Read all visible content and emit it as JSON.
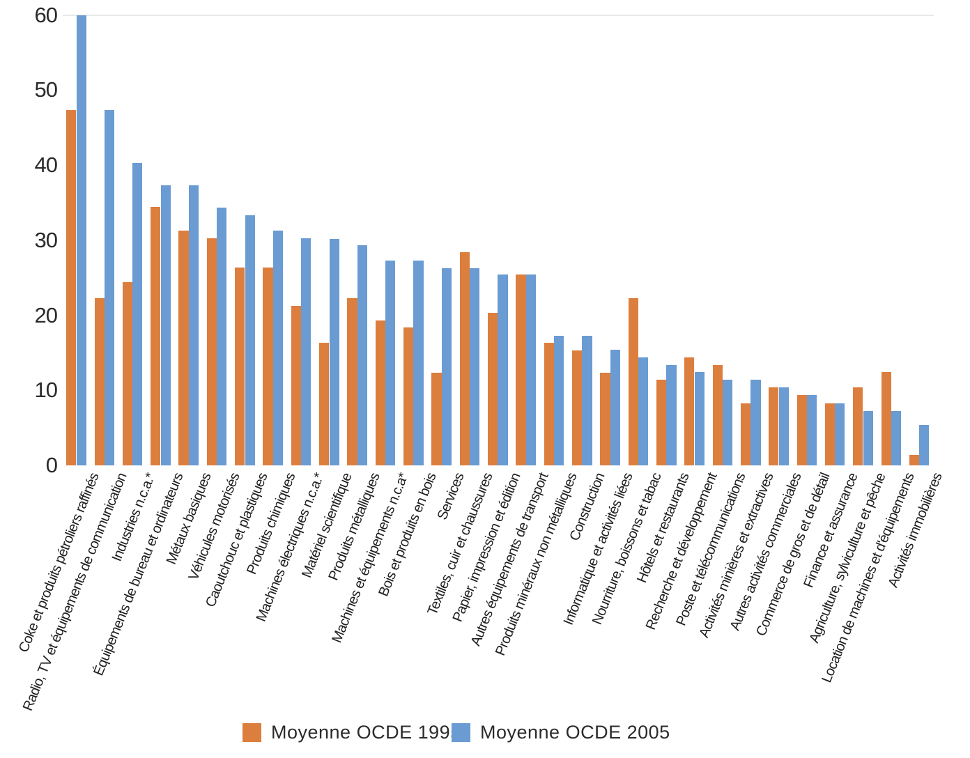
{
  "chart_data": {
    "type": "bar",
    "title": "",
    "xlabel": "",
    "ylabel": "",
    "categories": [
      "Coke et produits pétroliers raffinés",
      "Radio, TV et équipements de communication",
      "Industries n.c.a.*",
      "Équipements de bureau et ordinateurs",
      "Métaux basiques",
      "Véhicules motorisés",
      "Caoutchouc et plastiques",
      "Produits chimiques",
      "Machines électriques n.c.a.*",
      "Matériel scientifique",
      "Produits métalliques",
      "Machines et équipements n.c.a*",
      "Bois et produits en bois",
      "Services",
      "Textiles, cuir et chaussures",
      "Papier, impression et édition",
      "Autres équipements de transport",
      "Produits minéraux non métalliques",
      "Construction",
      "Informatique et activités liées",
      "Nourriture, boissons et tabac",
      "Hôtels et restaurants",
      "Recherche et développement",
      "Poste et télécommunications",
      "Activités minières et extractives",
      "Autres activités commerciales",
      "Commerce de gros et de détail",
      "Finance et assurance",
      "Agriculture, sylviculture et pêche",
      "Location de machines et d'équipements",
      "Activités immobilières"
    ],
    "series": [
      {
        "name": "Moyenne OCDE 1995",
        "color": "#DC7E3E",
        "values": [
          47.3,
          22.3,
          24.4,
          34.4,
          31.3,
          30.3,
          26.4,
          26.4,
          21.3,
          16.3,
          22.3,
          19.3,
          18.4,
          12.3,
          28.4,
          20.3,
          25.4,
          16.3,
          15.3,
          12.3,
          22.3,
          11.4,
          14.4,
          13.4,
          8.3,
          10.4,
          9.4,
          8.3,
          10.4,
          12.4,
          1.4
        ]
      },
      {
        "name": "Moyenne OCDE 2005",
        "color": "#6A9BD2",
        "values": [
          60.0,
          47.3,
          40.3,
          37.3,
          37.3,
          34.3,
          33.3,
          31.3,
          30.3,
          30.2,
          29.3,
          27.3,
          27.3,
          26.3,
          26.3,
          25.4,
          25.4,
          17.3,
          17.3,
          15.4,
          14.4,
          13.4,
          12.4,
          11.4,
          11.4,
          10.4,
          9.4,
          8.3,
          7.2,
          7.2,
          5.4
        ]
      }
    ],
    "ylim": [
      0,
      62
    ],
    "yticks": [
      0,
      10,
      20,
      30,
      40,
      50,
      60
    ],
    "grid": "single faint horizontal line at value 60",
    "legend_position": "bottom",
    "xtick_rotation_deg": 68
  },
  "legend": {
    "items": [
      {
        "label": "Moyenne OCDE 1995",
        "color": "#DC7E3E"
      },
      {
        "label": "Moyenne OCDE 2005",
        "color": "#6A9BD2"
      }
    ]
  },
  "colors": {
    "background": "#ffffff",
    "text": "#2b2b2b",
    "gridline": "#e8e8e8",
    "bar_1995": "#DC7E3E",
    "bar_2005": "#6A9BD2"
  }
}
